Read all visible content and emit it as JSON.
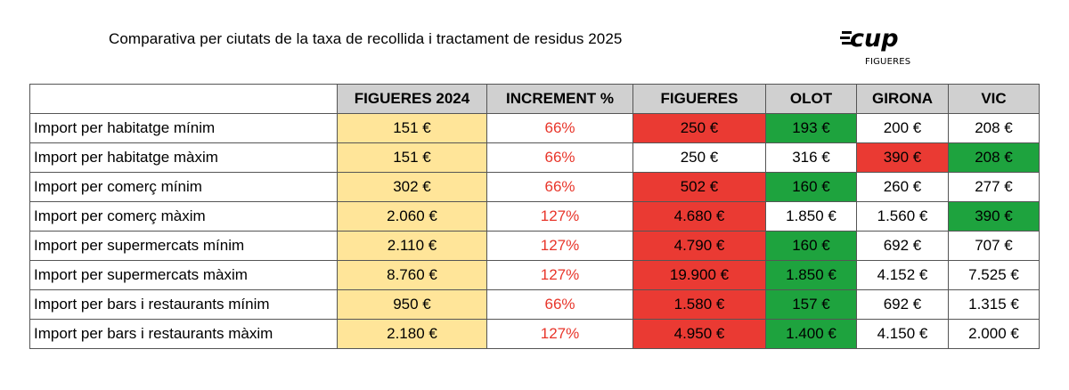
{
  "title": "Comparativa per ciutats de la taxa de recollida i tractament de residus 2025",
  "logo": {
    "text": "cup",
    "subtitle": "FIGUERES"
  },
  "table": {
    "headers": [
      "",
      "FIGUERES 2024",
      "INCREMENT %",
      "FIGUERES",
      "OLOT",
      "GIRONA",
      "VIC"
    ],
    "rows": [
      {
        "label": "Import per habitatge mínim",
        "cells": [
          "151 €",
          "66%",
          "250 €",
          "193 €",
          "200 €",
          "208 €"
        ],
        "colors": [
          "yellow",
          "none",
          "red",
          "green",
          "white",
          "white"
        ]
      },
      {
        "label": "Import per habitatge màxim",
        "cells": [
          "151 €",
          "66%",
          "250 €",
          "316 €",
          "390 €",
          "208 €"
        ],
        "colors": [
          "yellow",
          "none",
          "white",
          "white",
          "red",
          "green"
        ]
      },
      {
        "label": "Import per comerç mínim",
        "cells": [
          "302 €",
          "66%",
          "502 €",
          "160 €",
          "260 €",
          "277 €"
        ],
        "colors": [
          "yellow",
          "none",
          "red",
          "green",
          "white",
          "white"
        ]
      },
      {
        "label": "Import per comerç màxim",
        "cells": [
          "2.060 €",
          "127%",
          "4.680 €",
          "1.850 €",
          "1.560 €",
          "390 €"
        ],
        "colors": [
          "yellow",
          "none",
          "red",
          "white",
          "white",
          "green"
        ]
      },
      {
        "label": "Import per supermercats mínim",
        "cells": [
          "2.110 €",
          "127%",
          "4.790 €",
          "160 €",
          "692 €",
          "707 €"
        ],
        "colors": [
          "yellow",
          "none",
          "red",
          "green",
          "white",
          "white"
        ]
      },
      {
        "label": "Import per supermercats màxim",
        "cells": [
          "8.760 €",
          "127%",
          "19.900 €",
          "1.850 €",
          "4.152 €",
          "7.525 €"
        ],
        "colors": [
          "yellow",
          "none",
          "red",
          "green",
          "white",
          "white"
        ]
      },
      {
        "label": "Import per bars i restaurants mínim",
        "cells": [
          "950 €",
          "66%",
          "1.580 €",
          "157 €",
          "692 €",
          "1.315 €"
        ],
        "colors": [
          "yellow",
          "none",
          "red",
          "green",
          "white",
          "white"
        ]
      },
      {
        "label": "Import per bars i restaurants màxim",
        "cells": [
          "2.180 €",
          "127%",
          "4.950 €",
          "1.400 €",
          "4.150 €",
          "2.000 €"
        ],
        "colors": [
          "yellow",
          "none",
          "red",
          "green",
          "white",
          "white"
        ]
      }
    ]
  },
  "colors": {
    "yellow": "#ffe599",
    "red": "#ea3a33",
    "green": "#1ea33e",
    "header": "#d0d0d0",
    "increment_text": "#e8352a"
  }
}
